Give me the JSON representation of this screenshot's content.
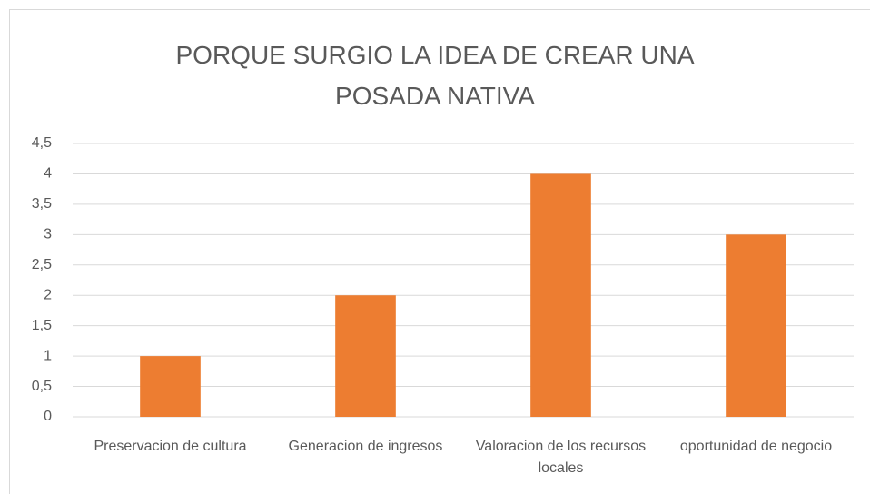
{
  "chart_data": {
    "type": "bar",
    "title": "PORQUE SURGIO LA IDEA DE CREAR UNA POSADA NATIVA",
    "categories": [
      "Preservacion de cultura",
      "Generacion de ingresos",
      "Valoracion de los recursos locales",
      "oportunidad de negocio"
    ],
    "values": [
      1,
      2,
      4,
      3
    ],
    "color": "#ed7d31",
    "ylim": [
      0,
      4.5
    ],
    "yticks": [
      0,
      {
        "value": 0.5,
        "label": "0,5"
      },
      1,
      {
        "value": 1.5,
        "label": "1,5"
      },
      2,
      {
        "value": 2.5,
        "label": "2,5"
      },
      3,
      {
        "value": 3.5,
        "label": "3,5"
      },
      4,
      {
        "value": 4.5,
        "label": "4,5"
      }
    ],
    "grid": true
  }
}
